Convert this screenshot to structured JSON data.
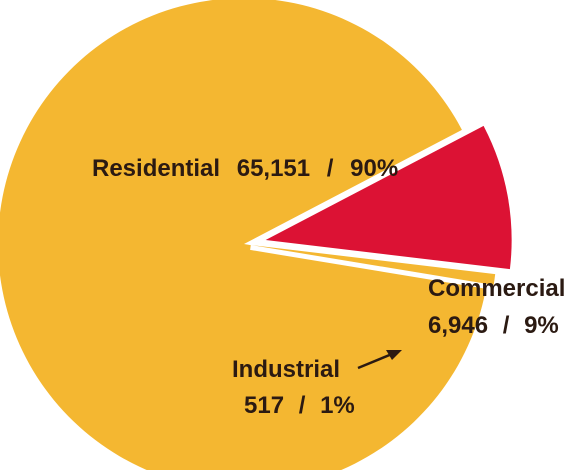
{
  "chart_data": {
    "type": "pie",
    "title": "",
    "colors": {
      "residential": "#f4b731",
      "commercial": "#dc1234",
      "industrial": "#f4b731",
      "text": "#2b1a12",
      "background": "#ffffff"
    },
    "slices": [
      {
        "key": "residential",
        "label": "Residential",
        "value": 65151,
        "value_text": "65,151",
        "percent_text": "90%",
        "percent": 90
      },
      {
        "key": "commercial",
        "label": "Commercial",
        "value": 6946,
        "value_text": "6,946",
        "percent_text": "9%",
        "percent": 9
      },
      {
        "key": "industrial",
        "label": "Industrial",
        "value": 517,
        "value_text": "517",
        "percent_text": "1%",
        "percent": 1
      }
    ]
  }
}
